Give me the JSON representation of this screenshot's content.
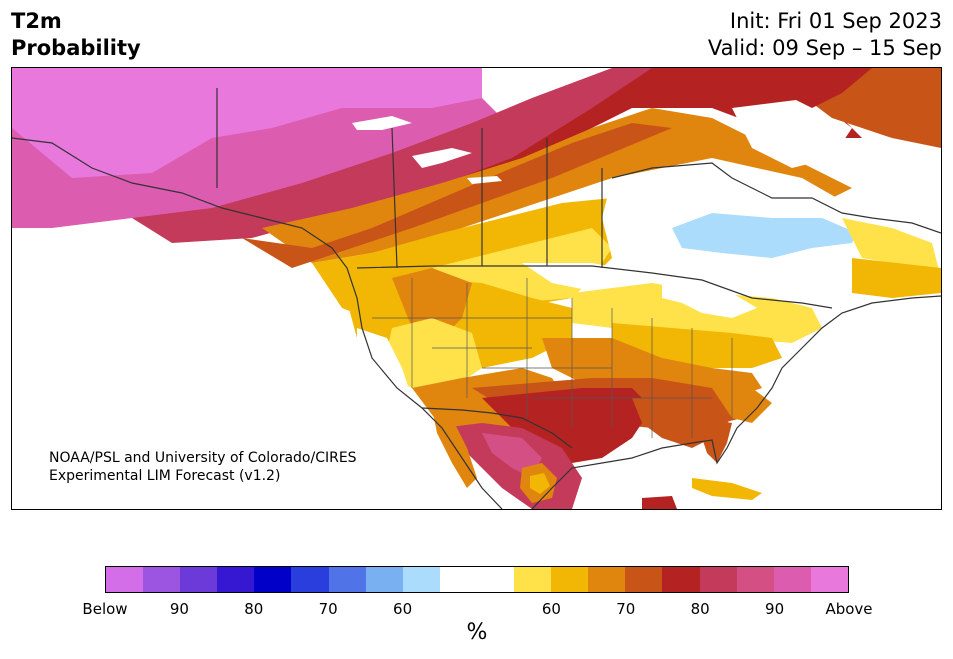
{
  "header": {
    "title_line1": "T2m",
    "title_line2": "Probability",
    "init": "Init: Fri 01 Sep 2023",
    "valid": "Valid: 09 Sep – 15 Sep"
  },
  "credit": {
    "line1": "NOAA/PSL and University of Colorado/CIRES",
    "line2": "Experimental LIM Forecast (v1.2)"
  },
  "colorbar": {
    "colors": [
      "#d36ee8",
      "#9c55e0",
      "#6c3ad9",
      "#3618d2",
      "#0000c8",
      "#2a3edd",
      "#5074e8",
      "#78b0f2",
      "#acdcfb",
      "#ffffff",
      "#ffffff",
      "#ffe24a",
      "#f2b705",
      "#e0860e",
      "#c95418",
      "#b42222",
      "#c43a5a",
      "#d45084",
      "#dc5cb0",
      "#e878dc"
    ],
    "ticks": [
      "Below",
      "90",
      "80",
      "70",
      "60",
      "60",
      "70",
      "80",
      "90",
      "Above"
    ],
    "unit": "%"
  }
}
